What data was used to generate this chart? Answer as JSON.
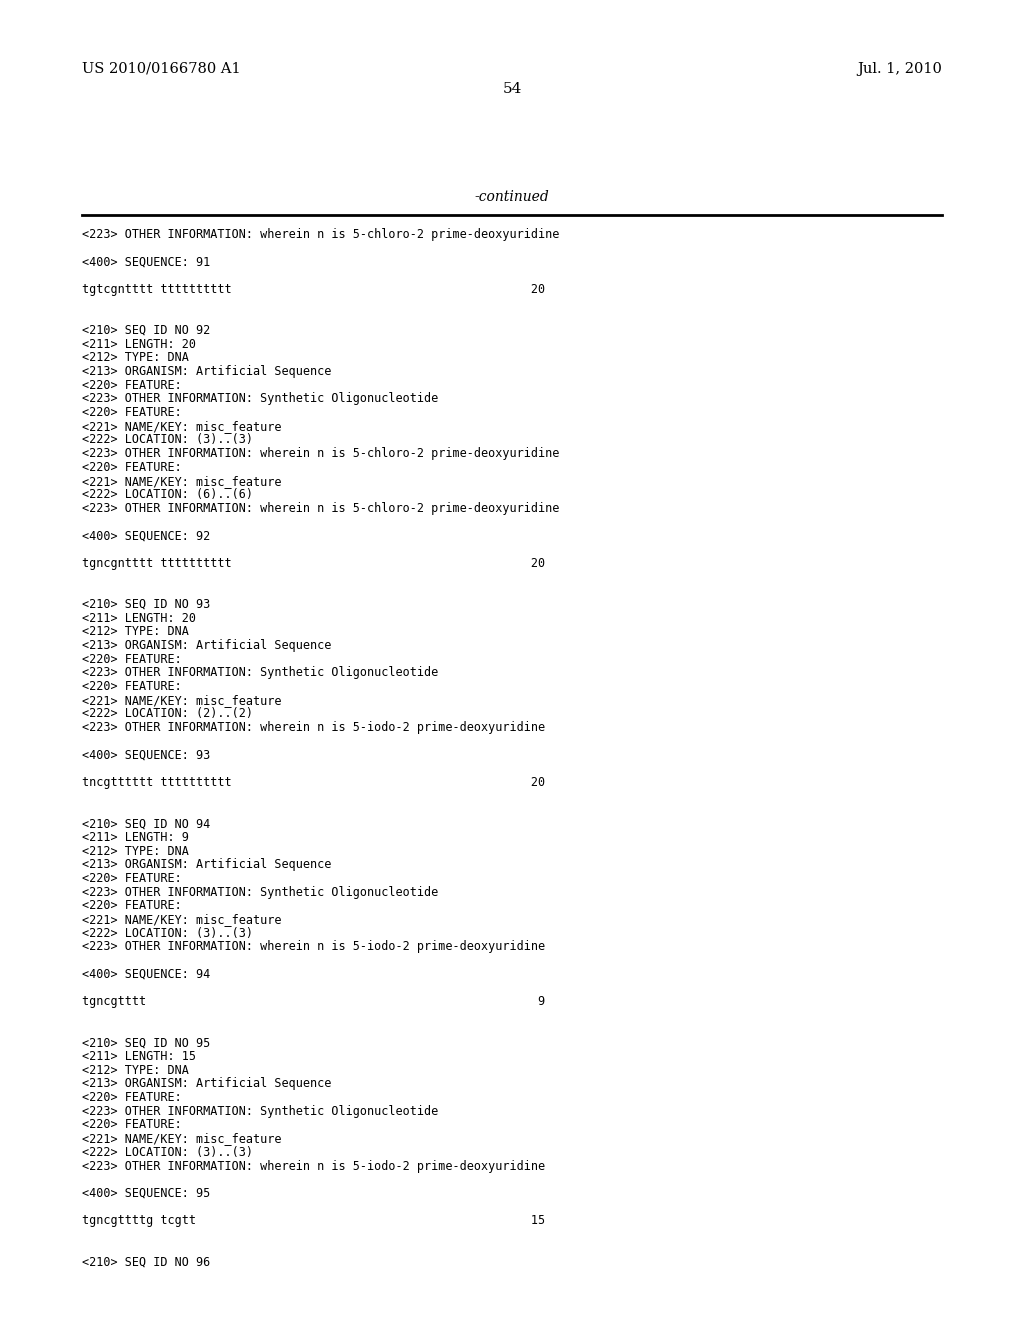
{
  "page_width": 10.24,
  "page_height": 13.2,
  "dpi": 100,
  "background_color": "#ffffff",
  "header_left": "US 2010/0166780 A1",
  "header_right": "Jul. 1, 2010",
  "page_number": "54",
  "continued_label": "-continued",
  "header_font_size": 10.5,
  "page_num_font_size": 11,
  "continued_font_size": 10,
  "mono_font_size": 8.5,
  "content_lines": [
    "<223> OTHER INFORMATION: wherein n is 5-chloro-2 prime-deoxyuridine",
    "",
    "<400> SEQUENCE: 91",
    "",
    "tgtcgntttt tttttttttt                                          20",
    "",
    "",
    "<210> SEQ ID NO 92",
    "<211> LENGTH: 20",
    "<212> TYPE: DNA",
    "<213> ORGANISM: Artificial Sequence",
    "<220> FEATURE:",
    "<223> OTHER INFORMATION: Synthetic Oligonucleotide",
    "<220> FEATURE:",
    "<221> NAME/KEY: misc_feature",
    "<222> LOCATION: (3)..(3)",
    "<223> OTHER INFORMATION: wherein n is 5-chloro-2 prime-deoxyuridine",
    "<220> FEATURE:",
    "<221> NAME/KEY: misc_feature",
    "<222> LOCATION: (6)..(6)",
    "<223> OTHER INFORMATION: wherein n is 5-chloro-2 prime-deoxyuridine",
    "",
    "<400> SEQUENCE: 92",
    "",
    "tgncgntttt tttttttttt                                          20",
    "",
    "",
    "<210> SEQ ID NO 93",
    "<211> LENGTH: 20",
    "<212> TYPE: DNA",
    "<213> ORGANISM: Artificial Sequence",
    "<220> FEATURE:",
    "<223> OTHER INFORMATION: Synthetic Oligonucleotide",
    "<220> FEATURE:",
    "<221> NAME/KEY: misc_feature",
    "<222> LOCATION: (2)..(2)",
    "<223> OTHER INFORMATION: wherein n is 5-iodo-2 prime-deoxyuridine",
    "",
    "<400> SEQUENCE: 93",
    "",
    "tncgtttttt tttttttttt                                          20",
    "",
    "",
    "<210> SEQ ID NO 94",
    "<211> LENGTH: 9",
    "<212> TYPE: DNA",
    "<213> ORGANISM: Artificial Sequence",
    "<220> FEATURE:",
    "<223> OTHER INFORMATION: Synthetic Oligonucleotide",
    "<220> FEATURE:",
    "<221> NAME/KEY: misc_feature",
    "<222> LOCATION: (3)..(3)",
    "<223> OTHER INFORMATION: wherein n is 5-iodo-2 prime-deoxyuridine",
    "",
    "<400> SEQUENCE: 94",
    "",
    "tgncgtttt                                                       9",
    "",
    "",
    "<210> SEQ ID NO 95",
    "<211> LENGTH: 15",
    "<212> TYPE: DNA",
    "<213> ORGANISM: Artificial Sequence",
    "<220> FEATURE:",
    "<223> OTHER INFORMATION: Synthetic Oligonucleotide",
    "<220> FEATURE:",
    "<221> NAME/KEY: misc_feature",
    "<222> LOCATION: (3)..(3)",
    "<223> OTHER INFORMATION: wherein n is 5-iodo-2 prime-deoxyuridine",
    "",
    "<400> SEQUENCE: 95",
    "",
    "tgncgttttg tcgtt                                               15",
    "",
    "",
    "<210> SEQ ID NO 96"
  ]
}
